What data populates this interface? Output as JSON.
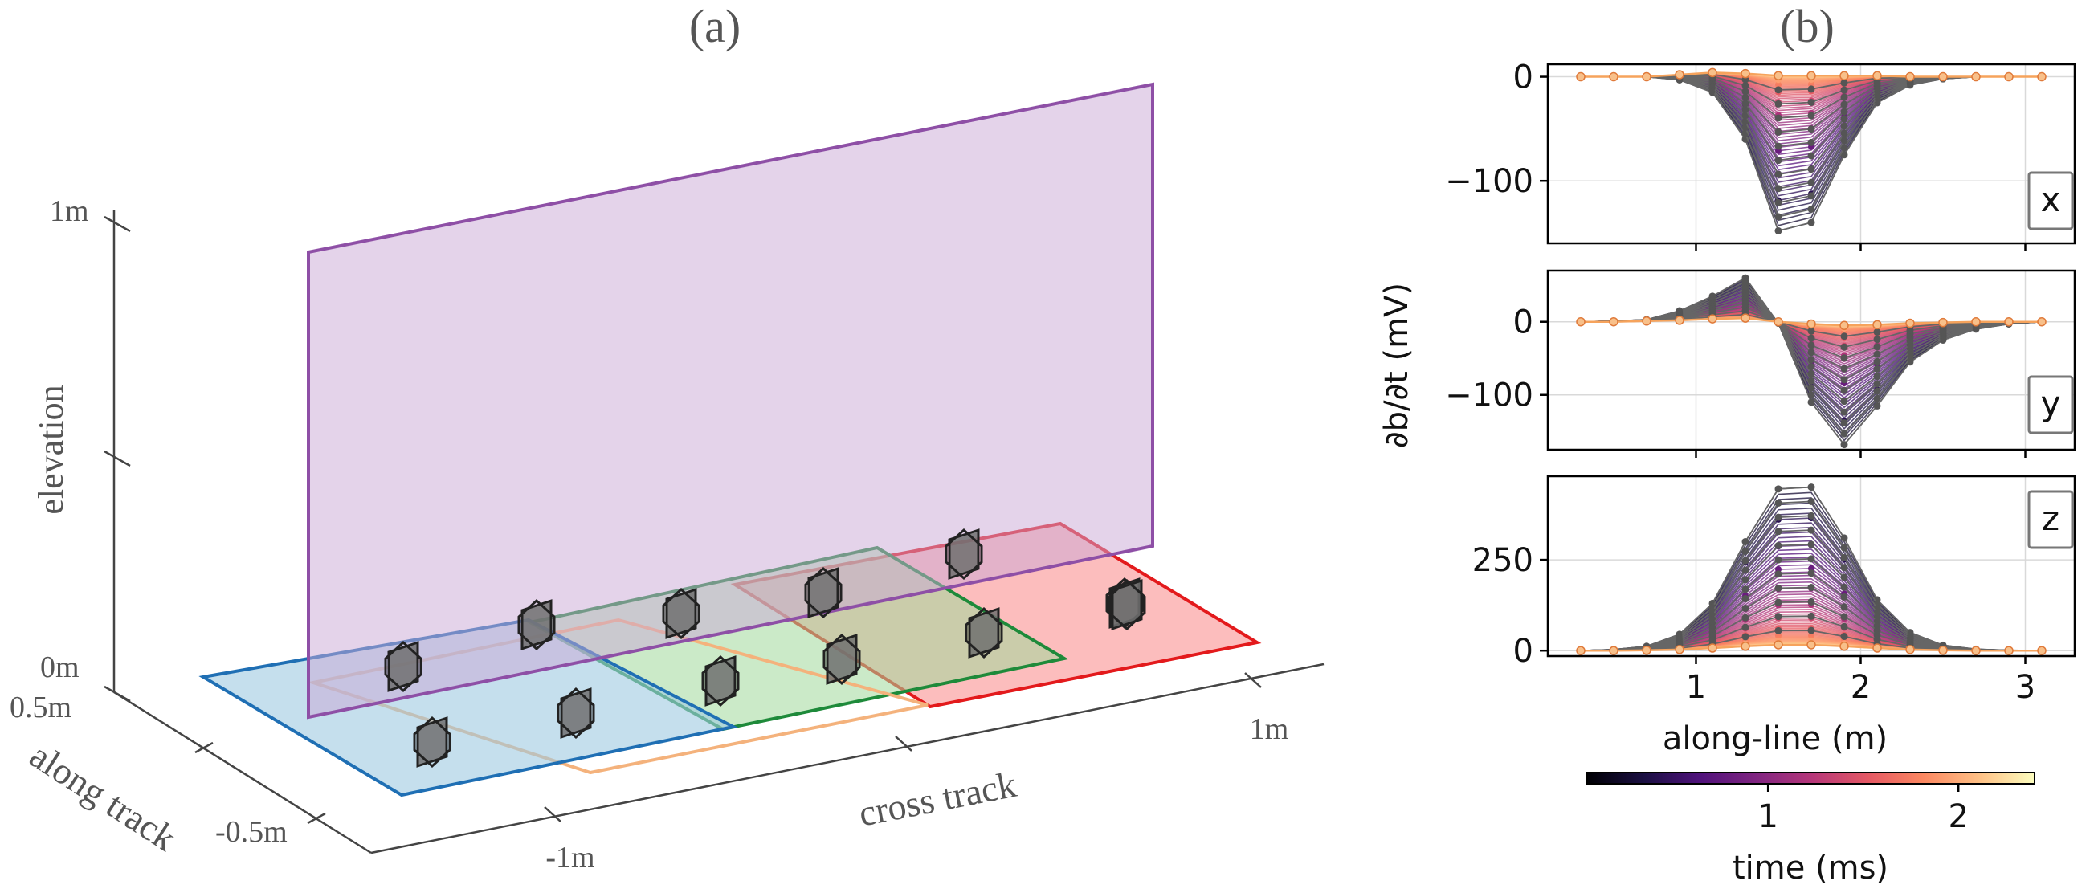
{
  "panel_a": {
    "label": "(a)",
    "axes": {
      "elevation_label": "elevation",
      "along_label": "along track",
      "cross_label": "cross track",
      "elevation_ticks": [
        "0m",
        "1m"
      ],
      "along_ticks": [
        "0.5m",
        "-0.5m"
      ],
      "cross_ticks": [
        "-1m",
        "1m"
      ]
    },
    "colors": {
      "blue": "#1f6fb4",
      "blue_fill": "#9ecae1",
      "orange": "#f4b27c",
      "green": "#1e8a3a",
      "green_fill": "#a1d99b",
      "red": "#e31a1c",
      "red_fill": "#fb9a99",
      "purple": "#8e4fa6",
      "purple_fill": "#c9a8d6",
      "sensor": "#707070"
    },
    "footprint_count": 4,
    "sensor_count": 12
  },
  "panel_b": {
    "label": "(b)",
    "ylabel": "∂b/∂t (mV)",
    "xlabel": "along-line (m)",
    "colorbar": {
      "label": "time (ms)",
      "ticks": [
        "1",
        "2"
      ],
      "range": [
        0.05,
        2.4
      ],
      "colormap": "magma"
    },
    "chart_data": [
      {
        "type": "line",
        "component": "x",
        "x": [
          0.3,
          0.5,
          0.7,
          0.9,
          1.1,
          1.3,
          1.5,
          1.7,
          1.9,
          2.1,
          2.3,
          2.5,
          2.7,
          2.9,
          3.1
        ],
        "peak_curve": [
          0,
          0,
          0,
          -3,
          -15,
          -60,
          -148,
          -140,
          -75,
          -25,
          -8,
          -2,
          0,
          0,
          0
        ],
        "late_curve": [
          0,
          0,
          0,
          2,
          4,
          3,
          1,
          1,
          1,
          1,
          0,
          0,
          0,
          0,
          0
        ],
        "ylim": [
          -160,
          12
        ],
        "yticks": [
          0,
          -100
        ],
        "xlim": [
          0.1,
          3.3
        ],
        "xticks": [
          1,
          2,
          3
        ]
      },
      {
        "type": "line",
        "component": "y",
        "x": [
          0.3,
          0.5,
          0.7,
          0.9,
          1.1,
          1.3,
          1.5,
          1.7,
          1.9,
          2.1,
          2.3,
          2.5,
          2.7,
          2.9,
          3.1
        ],
        "peak_curve": [
          0,
          1,
          3,
          15,
          35,
          60,
          -2,
          -110,
          -168,
          -115,
          -55,
          -25,
          -10,
          -3,
          0
        ],
        "late_curve": [
          0,
          0,
          1,
          2,
          4,
          5,
          0,
          -3,
          -5,
          -4,
          -2,
          -1,
          0,
          0,
          0
        ],
        "ylim": [
          -175,
          70
        ],
        "yticks": [
          0,
          -100
        ],
        "xlim": [
          0.1,
          3.3
        ],
        "xticks": [
          1,
          2,
          3
        ]
      },
      {
        "type": "line",
        "component": "z",
        "x": [
          0.3,
          0.5,
          0.7,
          0.9,
          1.1,
          1.3,
          1.5,
          1.7,
          1.9,
          2.1,
          2.3,
          2.5,
          2.7,
          2.9,
          3.1
        ],
        "peak_curve": [
          0,
          3,
          12,
          45,
          130,
          300,
          445,
          450,
          310,
          140,
          50,
          15,
          4,
          1,
          0
        ],
        "late_curve": [
          0,
          0,
          1,
          3,
          7,
          12,
          16,
          16,
          12,
          7,
          3,
          1,
          0,
          0,
          0
        ],
        "ylim": [
          -15,
          480
        ],
        "yticks": [
          0,
          250
        ],
        "xlim": [
          0.1,
          3.3
        ],
        "xticks": [
          1,
          2,
          3
        ]
      }
    ]
  }
}
